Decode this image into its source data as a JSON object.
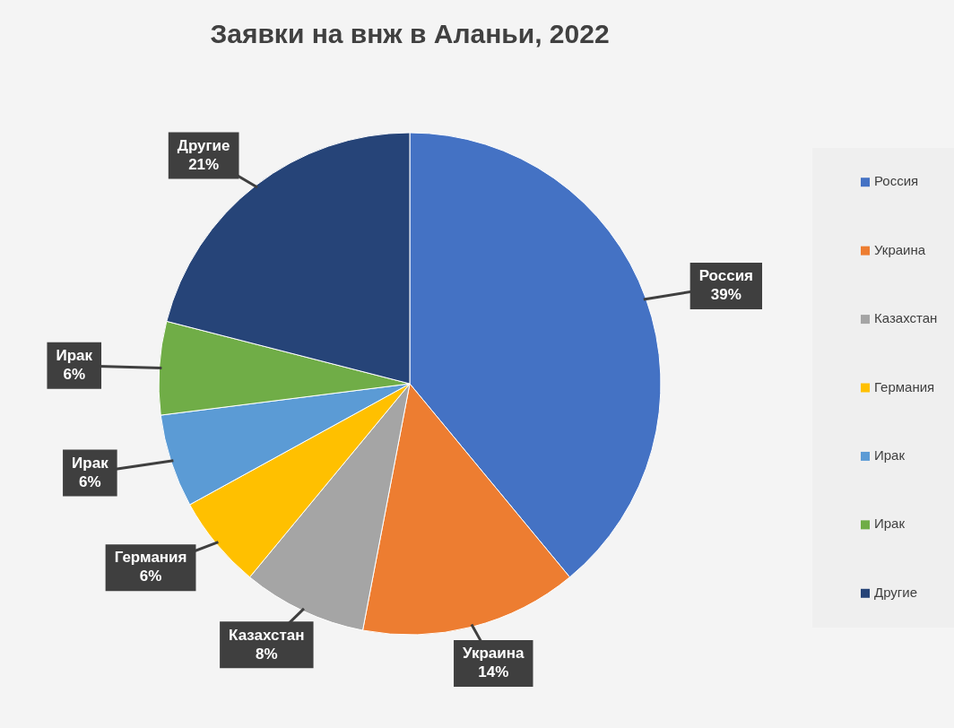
{
  "chart_data": {
    "type": "pie",
    "title": "Заявки на внж в Аланьи, 2022",
    "categories": [
      "Россия",
      "Украина",
      "Казахстан",
      "Германия",
      "Ирак",
      "Ирак",
      "Другие"
    ],
    "values": [
      39,
      14,
      8,
      6,
      6,
      6,
      21
    ],
    "value_labels": [
      "39%",
      "14%",
      "8%",
      "6%",
      "6%",
      "6%",
      "21%"
    ],
    "colors": [
      "#4472c4",
      "#ed7d31",
      "#a5a5a5",
      "#ffc000",
      "#5b9bd5",
      "#70ad47",
      "#264478"
    ],
    "legend": "right"
  }
}
